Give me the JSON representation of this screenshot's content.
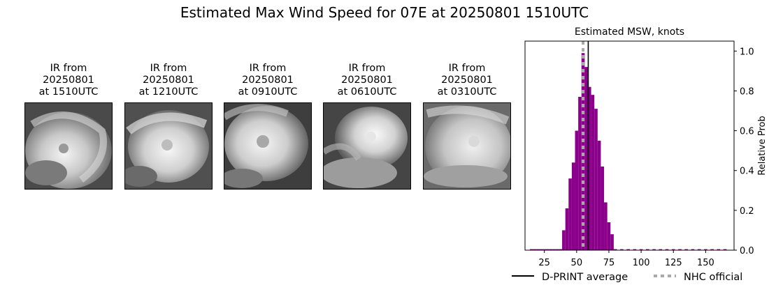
{
  "suptitle": "Estimated Max Wind Speed for 07E at 20250801 1510UTC",
  "ir_panels": [
    {
      "line1": "IR from",
      "line2": "20250801",
      "line3": "at 1510UTC"
    },
    {
      "line1": "IR from",
      "line2": "20250801",
      "line3": "at 1210UTC"
    },
    {
      "line1": "IR from",
      "line2": "20250801",
      "line3": "at 0910UTC"
    },
    {
      "line1": "IR from",
      "line2": "20250801",
      "line3": "at 0610UTC"
    },
    {
      "line1": "IR from",
      "line2": "20250801",
      "line3": "at 0310UTC"
    }
  ],
  "chart_data": {
    "type": "bar",
    "title": "Estimated MSW, knots",
    "xlabel": "",
    "ylabel": "Relative Prob",
    "xlim": [
      10,
      172
    ],
    "ylim": [
      0,
      1.05
    ],
    "xticks": [
      25,
      50,
      75,
      100,
      125,
      150
    ],
    "yticks": [
      0.0,
      0.2,
      0.4,
      0.6,
      0.8,
      1.0
    ],
    "ytick_labels": [
      "0.0",
      "0.2",
      "0.4",
      "0.6",
      "0.8",
      "1.0"
    ],
    "y_axis_side": "right",
    "bin_width": 2.5,
    "bar_color": "#8b008b",
    "bins": [
      {
        "x": 15,
        "y": 0.005
      },
      {
        "x": 17.5,
        "y": 0.005
      },
      {
        "x": 20,
        "y": 0.005
      },
      {
        "x": 22.5,
        "y": 0.005
      },
      {
        "x": 25,
        "y": 0.005
      },
      {
        "x": 27.5,
        "y": 0.005
      },
      {
        "x": 30,
        "y": 0.005
      },
      {
        "x": 32.5,
        "y": 0.005
      },
      {
        "x": 35,
        "y": 0.005
      },
      {
        "x": 37.5,
        "y": 0.005
      },
      {
        "x": 40,
        "y": 0.1
      },
      {
        "x": 42.5,
        "y": 0.21
      },
      {
        "x": 45,
        "y": 0.36
      },
      {
        "x": 47.5,
        "y": 0.44
      },
      {
        "x": 50,
        "y": 0.6
      },
      {
        "x": 52.5,
        "y": 0.77
      },
      {
        "x": 55,
        "y": 0.99
      },
      {
        "x": 57.5,
        "y": 0.92
      },
      {
        "x": 60,
        "y": 0.82
      },
      {
        "x": 62.5,
        "y": 0.78
      },
      {
        "x": 65,
        "y": 0.71
      },
      {
        "x": 67.5,
        "y": 0.55
      },
      {
        "x": 70,
        "y": 0.42
      },
      {
        "x": 72.5,
        "y": 0.24
      },
      {
        "x": 75,
        "y": 0.14
      },
      {
        "x": 77.5,
        "y": 0.08
      },
      {
        "x": 80,
        "y": 0.005
      },
      {
        "x": 85,
        "y": 0.005
      },
      {
        "x": 90,
        "y": 0.005
      },
      {
        "x": 95,
        "y": 0.005
      },
      {
        "x": 100,
        "y": 0.005
      },
      {
        "x": 105,
        "y": 0.005
      },
      {
        "x": 110,
        "y": 0.005
      },
      {
        "x": 115,
        "y": 0.005
      },
      {
        "x": 120,
        "y": 0.005
      },
      {
        "x": 125,
        "y": 0.005
      },
      {
        "x": 130,
        "y": 0.005
      },
      {
        "x": 135,
        "y": 0.005
      },
      {
        "x": 140,
        "y": 0.005
      },
      {
        "x": 145,
        "y": 0.005
      },
      {
        "x": 150,
        "y": 0.005
      },
      {
        "x": 155,
        "y": 0.005
      },
      {
        "x": 160,
        "y": 0.005
      },
      {
        "x": 165,
        "y": 0.005
      }
    ],
    "dprint_average": 59,
    "nhc_official": 55,
    "legend": [
      {
        "label": "D-PRINT average",
        "style": "solid",
        "color": "#000000"
      },
      {
        "label": "NHC official",
        "style": "dotted",
        "color": "#a9a9a9"
      }
    ],
    "legend_position": "bottom"
  }
}
